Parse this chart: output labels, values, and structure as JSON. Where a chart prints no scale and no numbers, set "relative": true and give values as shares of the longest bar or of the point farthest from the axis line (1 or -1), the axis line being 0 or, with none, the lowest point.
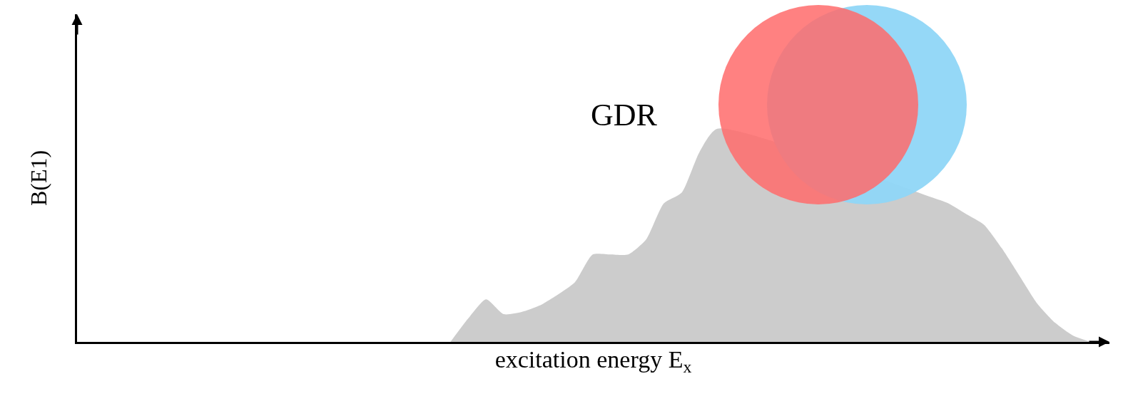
{
  "chart_data": {
    "type": "area",
    "relative": true,
    "xlabel": "excitation energy E$_{x}$",
    "ylabel": "B(E1)",
    "annotations": [
      "GDR"
    ],
    "categories": [
      null,
      null,
      null,
      null,
      null,
      null,
      null,
      null,
      null,
      null,
      null,
      null,
      null,
      null,
      null,
      null,
      null,
      null,
      null,
      null,
      null,
      null,
      null,
      null,
      null,
      null,
      null,
      null,
      null,
      null,
      null,
      null,
      null,
      null,
      null,
      null,
      null,
      null,
      null,
      null,
      null,
      null,
      null,
      null,
      null,
      null,
      null,
      null,
      null,
      null,
      null,
      null,
      null,
      null,
      null,
      null,
      null,
      null,
      null
    ],
    "series": [
      {
        "color": "#cccccc",
        "values": [
          null,
          null,
          null,
          null,
          null,
          null,
          null,
          null,
          null,
          null,
          null,
          null,
          null,
          null,
          null,
          null,
          null,
          null,
          null,
          null,
          null,
          0,
          0.11,
          0.2,
          0.13,
          0.14,
          0.17,
          0.22,
          0.28,
          0.41,
          0.41,
          0.41,
          0.48,
          0.65,
          0.7,
          0.89,
          1.0,
          null,
          null,
          null,
          null,
          null,
          null,
          null,
          null,
          null,
          null,
          null,
          0.68,
          0.65,
          0.6,
          0.55,
          0.44,
          0.31,
          0.18,
          0.09,
          0.03,
          0,
          null
        ]
      }
    ]
  }
}
